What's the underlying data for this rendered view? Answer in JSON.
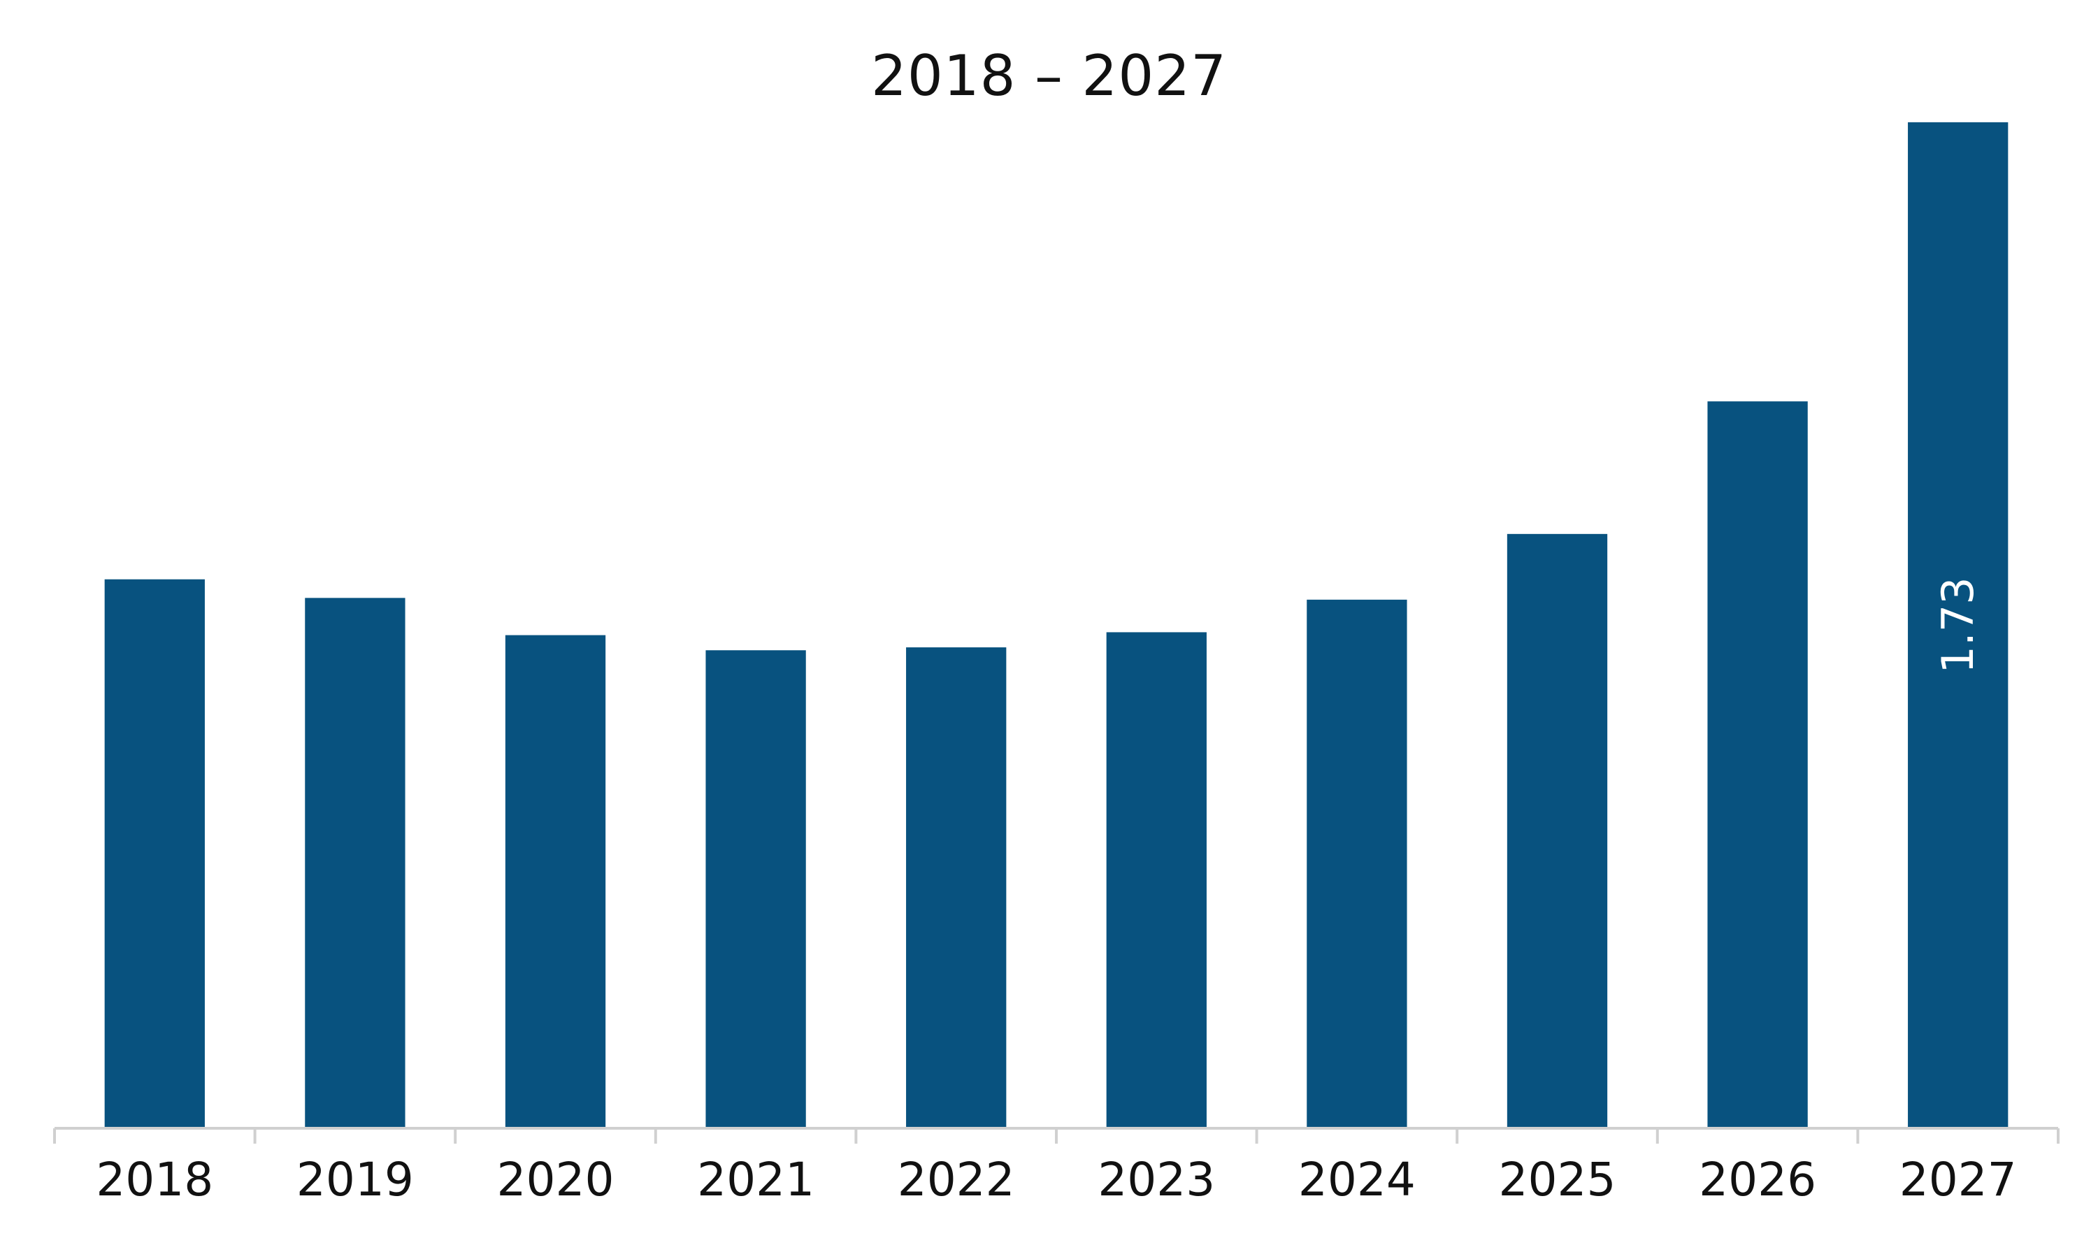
{
  "chart_data": {
    "type": "bar",
    "title": "2018 – 2027",
    "xlabel": "",
    "ylabel": "",
    "categories": [
      "2018",
      "2019",
      "2020",
      "2021",
      "2022",
      "2023",
      "2024",
      "2025",
      "2026",
      "2027"
    ],
    "values": [
      0.944,
      0.912,
      0.848,
      0.822,
      0.827,
      0.853,
      0.909,
      1.022,
      1.25,
      1.73
    ],
    "data_labels": [
      "",
      "",
      "",
      "",
      "",
      "",
      "",
      "",
      "",
      "1.73"
    ],
    "ylim": [
      0,
      1.82
    ],
    "grid": false,
    "legend": "none",
    "bar_color": "#08527f",
    "axis_color": "#d0d0d0"
  }
}
